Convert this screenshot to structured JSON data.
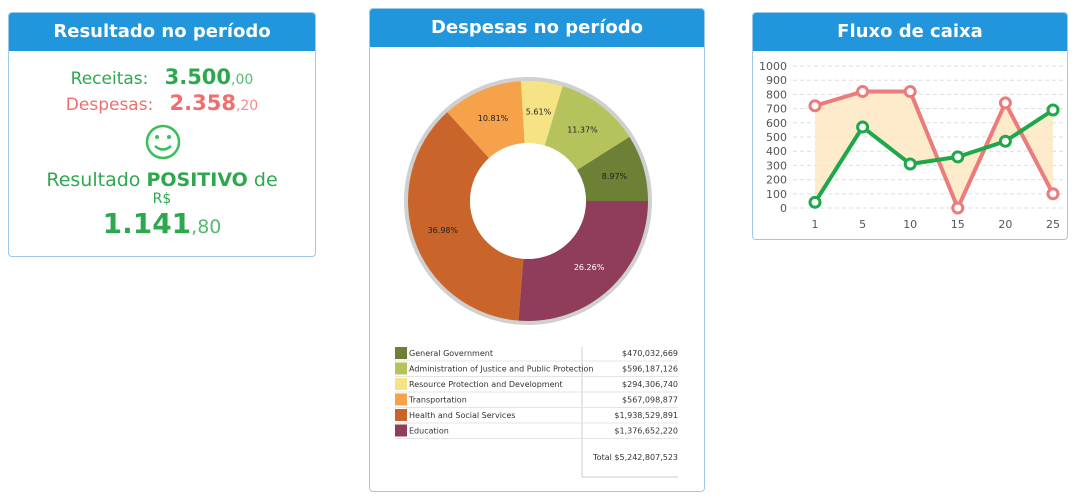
{
  "result_card": {
    "title": "Resultado no período",
    "income_label": "Receitas:",
    "income_int": "3.500",
    "income_dec": ",00",
    "expense_label": "Despesas:",
    "expense_int": "2.358",
    "expense_dec": ",20",
    "result_prefix": "Resultado",
    "result_word": "POSITIVO",
    "result_suffix": "de",
    "currency": "R$",
    "result_int": "1.141",
    "result_dec": ",80"
  },
  "chart_data": [
    {
      "type": "pie",
      "title": "Despesas no período",
      "categories": [
        "General Government",
        "Administration of Justice and Public Protection",
        "Resource Protection and Development",
        "Transportation",
        "Health and Social Services",
        "Education"
      ],
      "values": [
        8.97,
        11.37,
        5.61,
        10.81,
        36.98,
        26.26
      ],
      "value_labels": [
        "8.97%",
        "11.37%",
        "5.61%",
        "10.81%",
        "36.98%",
        "26.26%"
      ],
      "colors": [
        "#6e7f36",
        "#b6c35c",
        "#f6e383",
        "#f6a24a",
        "#c9652b",
        "#8f3d5a"
      ],
      "amounts": [
        "$470,032,669",
        "$596,187,126",
        "$294,306,740",
        "$567,098,877",
        "$1,938,529,891",
        "$1,376,652,220"
      ],
      "total": "Total $5,242,807,523"
    },
    {
      "type": "line",
      "title": "Fluxo de caixa",
      "categories": [
        "1",
        "5",
        "10",
        "15",
        "20",
        "25"
      ],
      "series": [
        {
          "color": "#ec7b7b",
          "values": [
            720,
            820,
            820,
            0,
            740,
            100
          ]
        },
        {
          "color": "#1fa84a",
          "values": [
            40,
            570,
            310,
            360,
            470,
            690
          ]
        }
      ],
      "fill_between": true,
      "fill_color": "#fde8c2",
      "ylim": [
        0,
        1000
      ],
      "yticks": [
        0,
        100,
        200,
        300,
        400,
        500,
        600,
        700,
        800,
        900,
        1000
      ],
      "grid": true
    }
  ]
}
